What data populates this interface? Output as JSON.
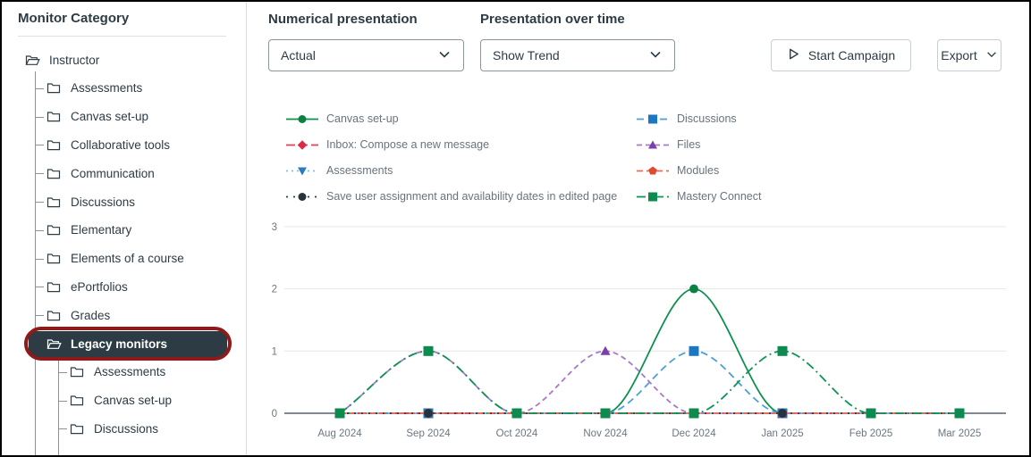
{
  "sidebar": {
    "title": "Monitor Category",
    "items": [
      {
        "label": "Instructor",
        "level": 0,
        "expanded": true,
        "selected": false,
        "annotated": false
      },
      {
        "label": "Assessments",
        "level": 1,
        "expanded": false,
        "selected": false,
        "annotated": false
      },
      {
        "label": "Canvas set-up",
        "level": 1,
        "expanded": false,
        "selected": false,
        "annotated": false
      },
      {
        "label": "Collaborative tools",
        "level": 1,
        "expanded": false,
        "selected": false,
        "annotated": false
      },
      {
        "label": "Communication",
        "level": 1,
        "expanded": false,
        "selected": false,
        "annotated": false
      },
      {
        "label": "Discussions",
        "level": 1,
        "expanded": false,
        "selected": false,
        "annotated": false
      },
      {
        "label": "Elementary",
        "level": 1,
        "expanded": false,
        "selected": false,
        "annotated": false
      },
      {
        "label": "Elements of a course",
        "level": 1,
        "expanded": false,
        "selected": false,
        "annotated": false
      },
      {
        "label": "ePortfolios",
        "level": 1,
        "expanded": false,
        "selected": false,
        "annotated": false
      },
      {
        "label": "Grades",
        "level": 1,
        "expanded": false,
        "selected": false,
        "annotated": false
      },
      {
        "label": "Legacy monitors",
        "level": 1,
        "expanded": true,
        "selected": true,
        "annotated": true
      },
      {
        "label": "Assessments",
        "level": 2,
        "expanded": false,
        "selected": false,
        "annotated": false
      },
      {
        "label": "Canvas set-up",
        "level": 2,
        "expanded": false,
        "selected": false,
        "annotated": false
      },
      {
        "label": "Discussions",
        "level": 2,
        "expanded": false,
        "selected": false,
        "annotated": false
      }
    ]
  },
  "controls": {
    "numerical_label": "Numerical presentation",
    "numerical_value": "Actual",
    "time_label": "Presentation over time",
    "time_value": "Show Trend",
    "start_campaign_label": "Start Campaign",
    "export_label": "Export"
  },
  "colors": {
    "selected_bg": "#2D3B45",
    "annotation_red": "#8E1A1A",
    "text_dark": "#2D3B45",
    "text_gray": "#68737D",
    "grid": "#E6E6E6",
    "axis": "#39424A"
  },
  "chart_data": {
    "type": "line",
    "smooth": true,
    "x_labels": [
      "Aug 2024",
      "Sep 2024",
      "Oct 2024",
      "Nov 2024",
      "Dec 2024",
      "Jan 2025",
      "Feb 2025",
      "Mar 2025"
    ],
    "yticks": [
      0,
      1,
      2,
      3
    ],
    "ylim": [
      0,
      3
    ],
    "legend_position": "top",
    "series": [
      {
        "name": "Canvas set-up",
        "values": [
          0,
          0,
          0,
          0,
          2,
          0,
          0,
          0
        ],
        "line_color": "#0E9150",
        "marker_color": "#0B8043",
        "marker": "circle",
        "dash": "",
        "legend_col": 0,
        "legend_row": 0
      },
      {
        "name": "Discussions",
        "values": [
          0,
          0,
          0,
          0,
          1,
          0,
          0,
          0
        ],
        "line_color": "#4D9FD6",
        "marker_color": "#1C77C3",
        "marker": "square",
        "dash": "8 5",
        "legend_col": 1,
        "legend_row": 0
      },
      {
        "name": "Inbox: Compose a new message",
        "values": [
          0,
          0,
          0,
          0,
          0,
          0,
          0,
          0
        ],
        "line_color": "#E43D5B",
        "marker_color": "#DC2B49",
        "marker": "diamond",
        "dash": "10 4",
        "legend_col": 0,
        "legend_row": 1
      },
      {
        "name": "Files",
        "values": [
          0,
          1,
          0,
          1,
          0,
          0,
          0,
          0
        ],
        "line_color": "#A878CB",
        "marker_color": "#7B3FA8",
        "marker": "triangle-up",
        "dash": "6 4",
        "legend_col": 1,
        "legend_row": 1
      },
      {
        "name": "Assessments",
        "values": [
          0,
          0,
          0,
          0,
          0,
          0,
          0,
          0
        ],
        "line_color": "#85BEE4",
        "marker_color": "#2B7BBF",
        "marker": "triangle-down",
        "dash": "2 4",
        "legend_col": 0,
        "legend_row": 2
      },
      {
        "name": "Modules",
        "values": [
          0,
          0,
          0,
          0,
          0,
          0,
          0,
          0
        ],
        "line_color": "#EE6A50",
        "marker_color": "#DD4B33",
        "marker": "pentagon",
        "dash": "7 4",
        "legend_col": 1,
        "legend_row": 2
      },
      {
        "name": "Save user assignment and availability dates in edited page",
        "values": [
          0,
          0,
          0,
          0,
          0,
          0,
          0,
          0
        ],
        "line_color": "#2D3B45",
        "marker_color": "#26323C",
        "marker": "circle",
        "dash": "2 6",
        "legend_col": 0,
        "legend_row": 3
      },
      {
        "name": "Mastery Connect",
        "values": [
          0,
          1,
          0,
          0,
          0,
          1,
          0,
          0
        ],
        "line_color": "#0E9355",
        "marker_color": "#0C8A50",
        "marker": "square",
        "dash": "10 4 2 4",
        "legend_col": 1,
        "legend_row": 3
      }
    ]
  }
}
